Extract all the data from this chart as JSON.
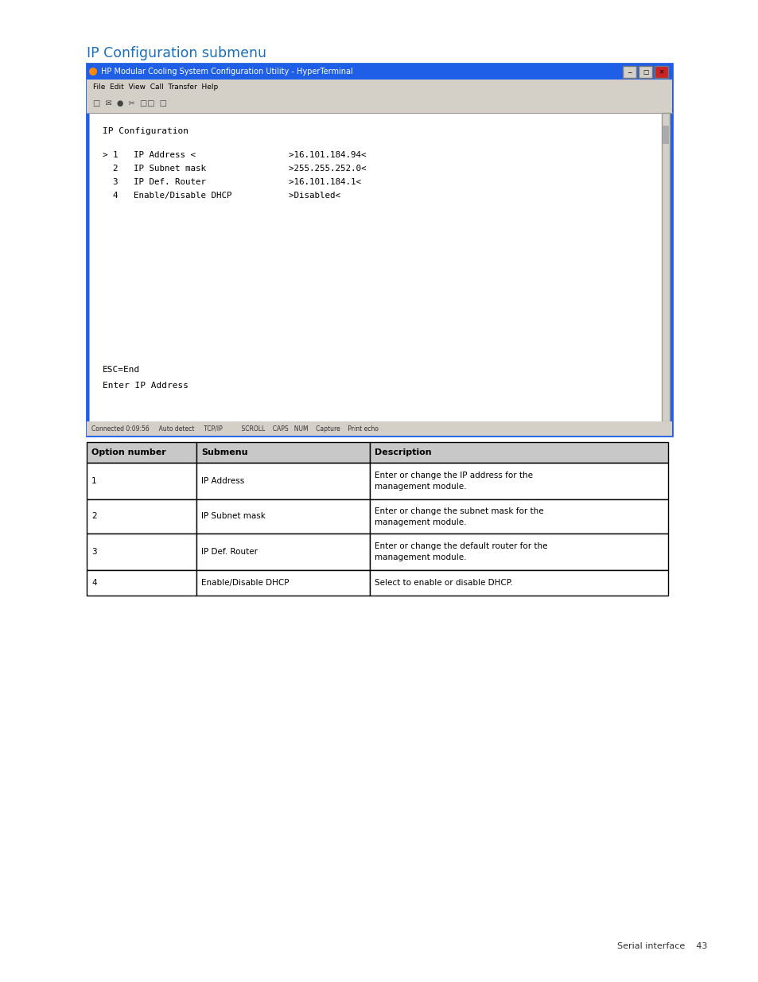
{
  "page_title": "IP Configuration submenu",
  "title_color": "#1a6fba",
  "title_fontsize": 12.5,
  "window_title": "HP Modular Cooling System Configuration Utility - HyperTerminal",
  "window_title_color": "#ffffff",
  "window_bar_color": "#1f5fe8",
  "menu_bar_text": "File  Edit  View  Call  Transfer  Help",
  "toolbar_bg": "#d4d0c8",
  "terminal_bg": "#ffffff",
  "terminal_border_color": "#1f5fe8",
  "terminal_content_title": "IP Configuration",
  "terminal_line1": "> 1   IP Address <                  >16.101.184.94<",
  "terminal_line2": "  2   IP Subnet mask                >255.255.252.0<",
  "terminal_line3": "  3   IP Def. Router                >16.101.184.1<",
  "terminal_line4": "  4   Enable/Disable DHCP           >Disabled<",
  "terminal_footer1": "ESC=End",
  "terminal_footer2": "Enter IP Address",
  "status_bar_text": "Connected 0:09:56     Auto detect     TCP/IP          SCROLL    CAPS   NUM    Capture    Print echo",
  "table_headers": [
    "Option number",
    "Submenu",
    "Description"
  ],
  "table_rows": [
    [
      "1",
      "IP Address",
      "Enter or change the IP address for the\nmanagement module."
    ],
    [
      "2",
      "IP Subnet mask",
      "Enter or change the subnet mask for the\nmanagement module."
    ],
    [
      "3",
      "IP Def. Router",
      "Enter or change the default router for the\nmanagement module."
    ],
    [
      "4",
      "Enable/Disable DHCP",
      "Select to enable or disable DHCP."
    ]
  ],
  "table_header_bg": "#c8c8c8",
  "table_border_color": "#000000",
  "footer_text": "Serial interface    43",
  "page_bg": "#ffffff",
  "font_family": "DejaVu Sans",
  "mono_font": "DejaVu Sans Mono"
}
